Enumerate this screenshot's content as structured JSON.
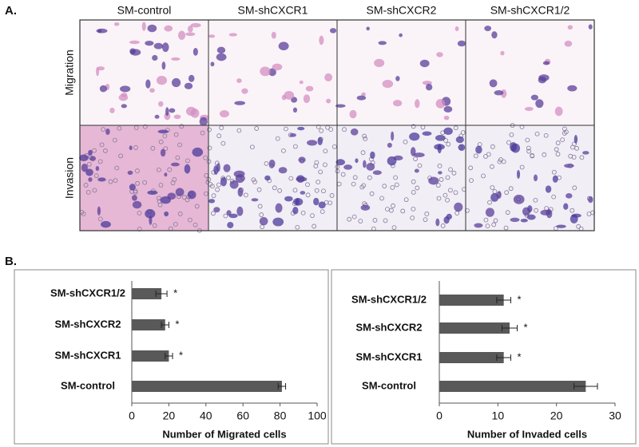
{
  "panel_a": {
    "label": "A.",
    "columns": [
      "SM-control",
      "SM-shCXCR1",
      "SM-shCXCR2",
      "SM-shCXCR1/2"
    ],
    "rows": [
      "Migration",
      "Invasion"
    ]
  },
  "panel_b": {
    "label": "B."
  },
  "chart_data": [
    {
      "type": "hbar",
      "categories": [
        "SM-shCXCR1/2",
        "SM-shCXCR2",
        "SM-shCXCR1",
        "SM-control"
      ],
      "values": [
        16,
        18,
        20,
        81
      ],
      "errors": [
        3,
        2,
        2,
        2
      ],
      "annotations": [
        "*",
        "*",
        "*",
        null
      ],
      "color": "#595959",
      "xlim": [
        0,
        100
      ],
      "xticks": [
        0,
        20,
        40,
        60,
        80,
        100
      ],
      "xlabel": "Number of Migrated cells"
    },
    {
      "type": "hbar",
      "categories": [
        "SM-shCXCR1/2",
        "SM-shCXCR2",
        "SM-shCXCR1",
        "SM-control"
      ],
      "values": [
        11,
        12,
        11,
        25
      ],
      "errors": [
        1.2,
        1.3,
        1.2,
        2
      ],
      "annotations": [
        "*",
        "*",
        "*",
        null
      ],
      "color": "#595959",
      "xlim": [
        0,
        30
      ],
      "xticks": [
        0,
        10,
        20,
        30
      ],
      "xlabel": "Number of Invaded cells"
    }
  ]
}
